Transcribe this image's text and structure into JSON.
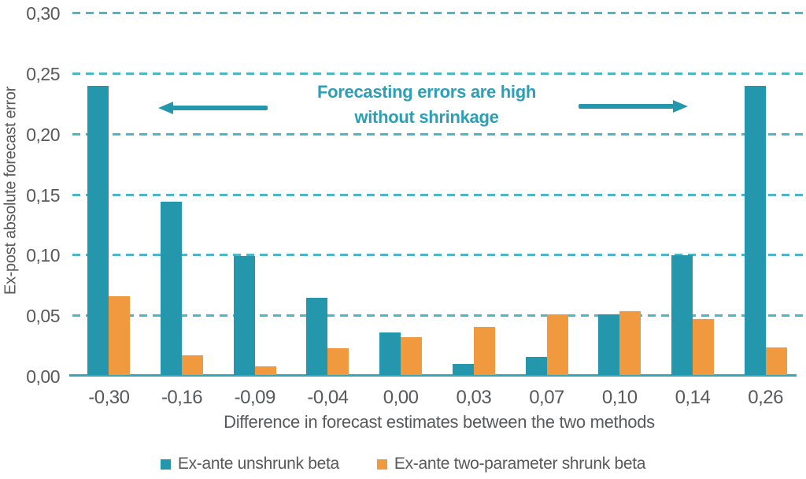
{
  "colors": {
    "unshrunk_teal": "#2597ad",
    "shrunk_orange": "#f0993e",
    "gridline_teal": "#4db7ca",
    "axis_line_teal": "#35a6bb",
    "axis_text_gray": "#58595b",
    "annotation_teal": "#2a9fb6"
  },
  "chart_data": {
    "type": "bar",
    "title": "",
    "xlabel": "Difference in forecast estimates between the two methods",
    "ylabel": "Ex-post absolute forecast error",
    "ylim": [
      0,
      0.3
    ],
    "grid": "dashed horizontal gridlines, solid bottom axis",
    "legend_position": "bottom center",
    "decimal_separator": "comma",
    "categories": [
      "-0,30",
      "-0,16",
      "-0,09",
      "-0,04",
      "0,00",
      "0,03",
      "0,07",
      "0,10",
      "0,14",
      "0,26"
    ],
    "series": [
      {
        "name": "Ex-ante unshrunk beta",
        "color": "#2597ad",
        "values": [
          0.239,
          0.143,
          0.098,
          0.064,
          0.035,
          0.009,
          0.015,
          0.05,
          0.099,
          0.239
        ]
      },
      {
        "name": "Ex-ante two-parameter shrunk beta",
        "color": "#f0993e",
        "values": [
          0.065,
          0.016,
          0.007,
          0.022,
          0.031,
          0.04,
          0.05,
          0.053,
          0.046,
          0.023
        ]
      }
    ],
    "y_ticks": [
      {
        "value": 0.0,
        "label": "0,00"
      },
      {
        "value": 0.05,
        "label": "0,05"
      },
      {
        "value": 0.1,
        "label": "0,10"
      },
      {
        "value": 0.15,
        "label": "0,15"
      },
      {
        "value": 0.2,
        "label": "0,20"
      },
      {
        "value": 0.25,
        "label": "0,25"
      },
      {
        "value": 0.3,
        "label": "0,30"
      }
    ],
    "annotation": {
      "line1": "Forecasting errors are high",
      "line2": "without shrinkage"
    }
  }
}
